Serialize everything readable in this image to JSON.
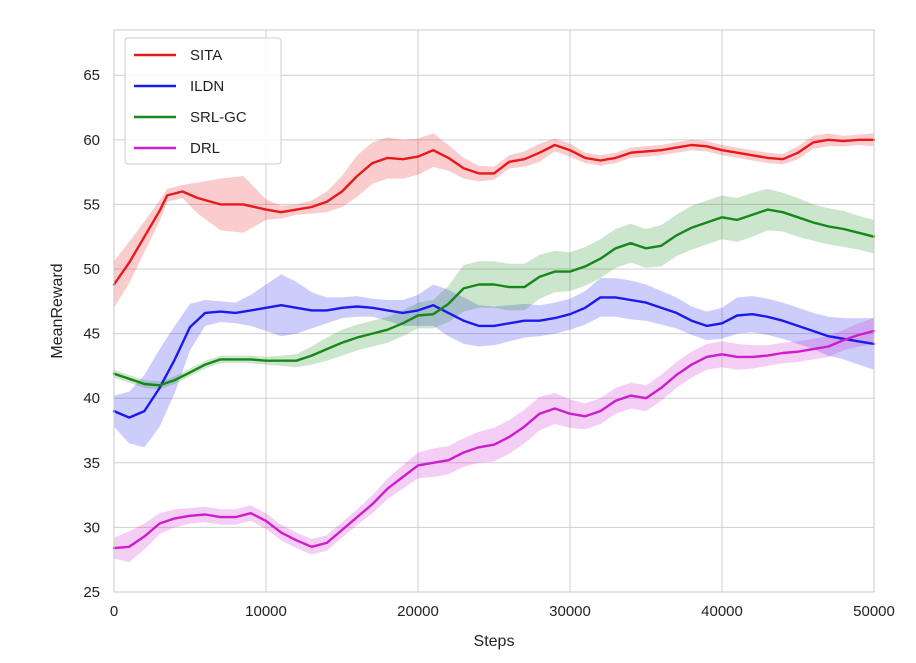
{
  "chart_data": {
    "type": "line",
    "title": "",
    "xlabel": "Steps",
    "ylabel": "MeanReward",
    "xlim": [
      0,
      50000
    ],
    "ylim": [
      25,
      68.5
    ],
    "xticks": [
      0,
      10000,
      20000,
      30000,
      40000,
      50000
    ],
    "yticks": [
      25,
      30,
      35,
      40,
      45,
      50,
      55,
      60,
      65
    ],
    "xtick_labels": [
      "0",
      "10000",
      "20000",
      "30000",
      "40000",
      "50000"
    ],
    "ytick_labels": [
      "25",
      "30",
      "35",
      "40",
      "45",
      "50",
      "55",
      "60",
      "65"
    ],
    "grid": true,
    "legend_position": "top-left",
    "series": [
      {
        "name": "SITA",
        "color": "#e8191b",
        "x": [
          0,
          1000,
          2000,
          3000,
          3500,
          4500,
          5500,
          7000,
          8500,
          10000,
          11000,
          12000,
          13000,
          14000,
          15000,
          16000,
          17000,
          18000,
          19000,
          20000,
          21000,
          22000,
          23000,
          24000,
          25000,
          26000,
          27000,
          28000,
          29000,
          30000,
          31000,
          32000,
          33000,
          34000,
          35000,
          36000,
          37000,
          38000,
          39000,
          40000,
          41000,
          42000,
          43000,
          44000,
          45000,
          46000,
          47000,
          48000,
          49000,
          50000
        ],
        "y": [
          48.8,
          50.5,
          52.5,
          54.5,
          55.7,
          56.0,
          55.5,
          55.0,
          55.0,
          54.6,
          54.4,
          54.6,
          54.8,
          55.2,
          56.0,
          57.2,
          58.2,
          58.6,
          58.5,
          58.7,
          59.2,
          58.6,
          57.8,
          57.4,
          57.4,
          58.3,
          58.5,
          59.0,
          59.6,
          59.2,
          58.6,
          58.4,
          58.6,
          59.0,
          59.1,
          59.2,
          59.4,
          59.6,
          59.5,
          59.2,
          59.0,
          58.8,
          58.6,
          58.5,
          59.0,
          59.8,
          60.0,
          59.9,
          60.0,
          60.0
        ],
        "band": [
          1.8,
          1.6,
          1.2,
          0.8,
          0.5,
          0.5,
          1.2,
          2.0,
          2.2,
          0.8,
          0.5,
          0.4,
          0.5,
          0.8,
          1.2,
          1.6,
          1.6,
          1.6,
          1.5,
          1.4,
          1.3,
          1.0,
          0.8,
          0.6,
          0.5,
          0.5,
          0.6,
          0.7,
          0.5,
          0.5,
          0.4,
          0.4,
          0.4,
          0.4,
          0.4,
          0.4,
          0.4,
          0.4,
          0.4,
          0.4,
          0.4,
          0.4,
          0.4,
          0.4,
          0.5,
          0.5,
          0.5,
          0.4,
          0.4,
          0.5
        ]
      },
      {
        "name": "ILDN",
        "color": "#1a1aee",
        "x": [
          0,
          1000,
          2000,
          3000,
          4000,
          5000,
          6000,
          7000,
          8000,
          9000,
          10000,
          11000,
          12000,
          13000,
          14000,
          15000,
          16000,
          17000,
          18000,
          19000,
          20000,
          21000,
          22000,
          23000,
          24000,
          25000,
          26000,
          27000,
          28000,
          29000,
          30000,
          31000,
          32000,
          33000,
          34000,
          35000,
          36000,
          37000,
          38000,
          39000,
          40000,
          41000,
          42000,
          43000,
          44000,
          45000,
          46000,
          47000,
          48000,
          49000,
          50000
        ],
        "y": [
          39.0,
          38.5,
          39.0,
          40.8,
          43.0,
          45.5,
          46.6,
          46.7,
          46.6,
          46.8,
          47.0,
          47.2,
          47.0,
          46.8,
          46.8,
          47.0,
          47.1,
          47.0,
          46.8,
          46.6,
          46.8,
          47.2,
          46.6,
          46.0,
          45.6,
          45.6,
          45.8,
          46.0,
          46.0,
          46.2,
          46.5,
          47.0,
          47.8,
          47.8,
          47.6,
          47.4,
          47.0,
          46.6,
          46.0,
          45.6,
          45.8,
          46.4,
          46.5,
          46.3,
          46.0,
          45.6,
          45.2,
          44.8,
          44.6,
          44.4,
          44.2
        ],
        "band": [
          1.2,
          2.0,
          2.8,
          3.0,
          2.6,
          1.8,
          1.0,
          0.8,
          0.8,
          1.2,
          1.8,
          2.4,
          2.0,
          1.4,
          1.0,
          0.8,
          0.8,
          0.7,
          0.8,
          1.0,
          1.2,
          1.6,
          1.8,
          1.8,
          1.6,
          1.5,
          1.4,
          1.3,
          1.2,
          1.2,
          1.2,
          1.3,
          1.5,
          1.5,
          1.5,
          1.4,
          1.3,
          1.2,
          1.1,
          1.1,
          1.2,
          1.4,
          1.4,
          1.4,
          1.4,
          1.4,
          1.4,
          1.5,
          1.6,
          1.8,
          2.0
        ]
      },
      {
        "name": "SRL-GC",
        "color": "#17871a",
        "x": [
          0,
          1000,
          2000,
          3000,
          4000,
          5000,
          6000,
          7000,
          8000,
          9000,
          10000,
          11000,
          12000,
          13000,
          14000,
          15000,
          16000,
          17000,
          18000,
          19000,
          20000,
          21000,
          22000,
          23000,
          24000,
          25000,
          26000,
          27000,
          28000,
          29000,
          30000,
          31000,
          32000,
          33000,
          34000,
          35000,
          36000,
          37000,
          38000,
          39000,
          40000,
          41000,
          42000,
          43000,
          44000,
          45000,
          46000,
          47000,
          48000,
          49000,
          50000
        ],
        "y": [
          41.9,
          41.5,
          41.1,
          41.0,
          41.4,
          42.0,
          42.6,
          43.0,
          43.0,
          43.0,
          42.9,
          42.9,
          42.9,
          43.3,
          43.8,
          44.3,
          44.7,
          45.0,
          45.3,
          45.8,
          46.4,
          46.5,
          47.3,
          48.5,
          48.8,
          48.8,
          48.6,
          48.6,
          49.4,
          49.8,
          49.8,
          50.2,
          50.8,
          51.6,
          52.0,
          51.6,
          51.8,
          52.6,
          53.2,
          53.6,
          54.0,
          53.8,
          54.2,
          54.6,
          54.4,
          54.0,
          53.6,
          53.3,
          53.1,
          52.8,
          52.5
        ],
        "band": [
          0.3,
          0.3,
          0.3,
          0.3,
          0.3,
          0.3,
          0.3,
          0.3,
          0.3,
          0.3,
          0.3,
          0.4,
          0.5,
          0.7,
          0.9,
          1.0,
          1.0,
          1.0,
          1.0,
          1.0,
          1.0,
          1.1,
          1.4,
          1.8,
          1.8,
          1.8,
          1.8,
          1.8,
          1.7,
          1.6,
          1.5,
          1.5,
          1.5,
          1.5,
          1.5,
          1.5,
          1.6,
          1.6,
          1.7,
          1.7,
          1.7,
          1.7,
          1.7,
          1.6,
          1.5,
          1.5,
          1.4,
          1.4,
          1.4,
          1.3,
          1.3
        ]
      },
      {
        "name": "DRL",
        "color": "#cc1ecc",
        "x": [
          0,
          1000,
          2000,
          3000,
          4000,
          5000,
          6000,
          7000,
          8000,
          9000,
          10000,
          11000,
          12000,
          13000,
          14000,
          15000,
          16000,
          17000,
          18000,
          19000,
          20000,
          21000,
          22000,
          23000,
          24000,
          25000,
          26000,
          27000,
          28000,
          29000,
          30000,
          31000,
          32000,
          33000,
          34000,
          35000,
          36000,
          37000,
          38000,
          39000,
          40000,
          41000,
          42000,
          43000,
          44000,
          45000,
          46000,
          47000,
          48000,
          49000,
          50000
        ],
        "y": [
          28.4,
          28.5,
          29.3,
          30.3,
          30.7,
          30.9,
          31.0,
          30.8,
          30.8,
          31.1,
          30.5,
          29.6,
          29.0,
          28.5,
          28.8,
          29.8,
          30.8,
          31.8,
          33.0,
          33.9,
          34.8,
          35.0,
          35.2,
          35.8,
          36.2,
          36.4,
          37.0,
          37.8,
          38.8,
          39.2,
          38.8,
          38.6,
          39.0,
          39.8,
          40.2,
          40.0,
          40.8,
          41.8,
          42.6,
          43.2,
          43.4,
          43.2,
          43.2,
          43.3,
          43.5,
          43.6,
          43.8,
          44.0,
          44.5,
          44.9,
          45.2
        ],
        "band": [
          0.8,
          1.2,
          1.0,
          0.8,
          0.7,
          0.6,
          0.6,
          0.6,
          0.6,
          0.6,
          0.6,
          0.6,
          0.6,
          0.6,
          0.6,
          0.6,
          0.6,
          0.7,
          0.8,
          0.9,
          1.0,
          1.1,
          1.1,
          1.1,
          1.2,
          1.3,
          1.3,
          1.3,
          1.3,
          1.2,
          1.1,
          1.0,
          1.0,
          1.0,
          1.0,
          1.0,
          1.0,
          1.0,
          1.0,
          1.0,
          1.0,
          1.0,
          0.9,
          0.8,
          0.8,
          0.8,
          0.8,
          0.8,
          0.8,
          0.9,
          1.0
        ]
      }
    ]
  }
}
